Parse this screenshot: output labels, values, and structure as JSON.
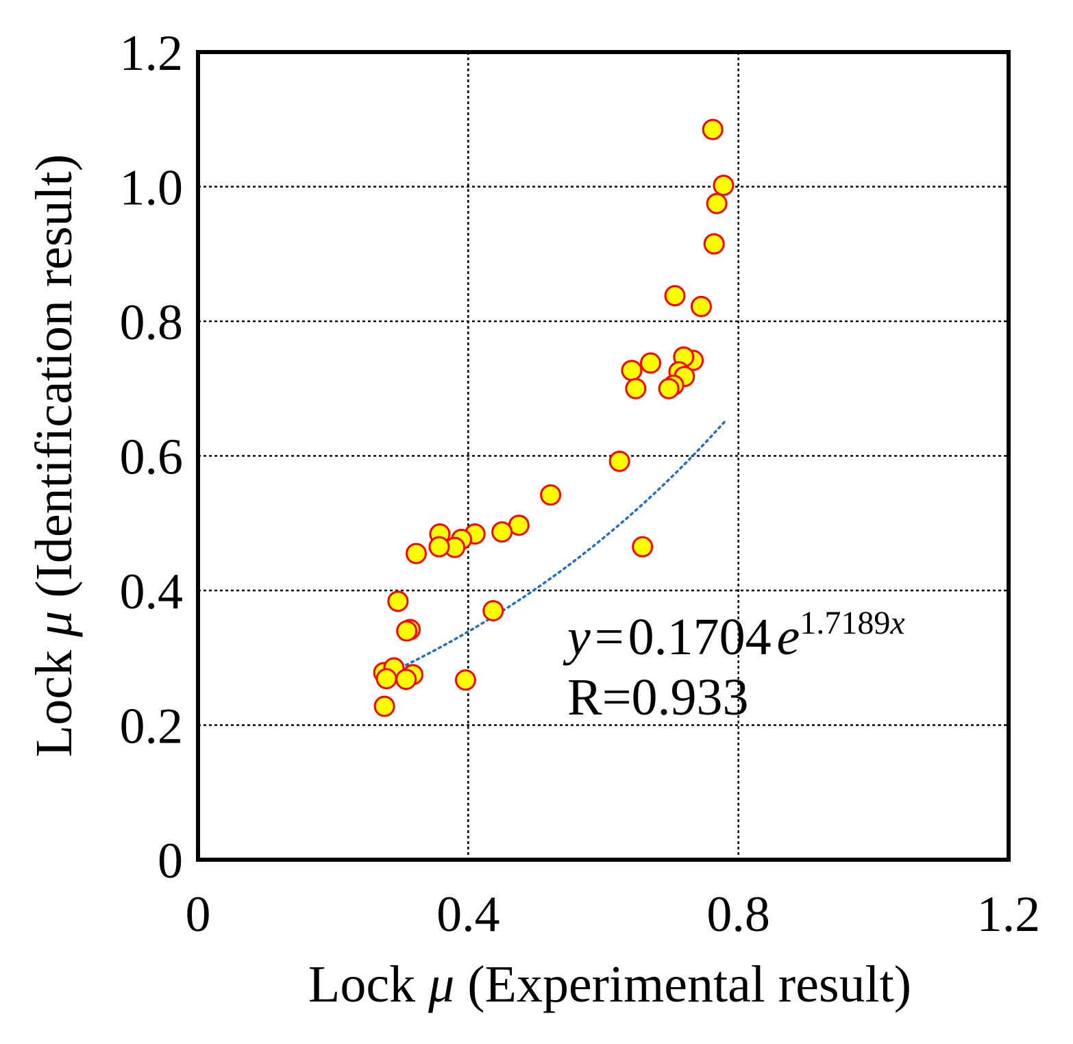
{
  "chart_data": {
    "type": "scatter",
    "title": "",
    "xlabel": {
      "prefix": "Lock ",
      "symbol": "μ",
      "suffix": " (Experimental result)"
    },
    "ylabel": {
      "prefix": "Lock ",
      "symbol": "μ",
      "suffix": " (Identification result)"
    },
    "xlim": [
      0,
      1.2
    ],
    "ylim": [
      0,
      1.2
    ],
    "grid": true,
    "x_ticks": [
      0,
      0.4,
      0.8,
      1.2
    ],
    "x_tick_labels": [
      "0",
      "0.4",
      "0.8",
      "1.2"
    ],
    "y_ticks": [
      0,
      0.2,
      0.4,
      0.6,
      0.8,
      1.0,
      1.2
    ],
    "y_tick_labels": [
      "0",
      "0.2",
      "0.4",
      "0.6",
      "0.8",
      "1.0",
      "1.2"
    ],
    "marker": {
      "fill": "#ffff00",
      "stroke": "#ff0000"
    },
    "trendline": {
      "type": "exponential",
      "a": 0.1704,
      "b": 1.7189,
      "x_range": [
        0.275,
        0.78
      ],
      "color": "#1f6fc4"
    },
    "annotation": {
      "eq_var": "y",
      "eq_eq": "=",
      "eq_coef": "0.1704",
      "eq_base": "e",
      "eq_exp_num": "1.7189",
      "eq_exp_var": "x",
      "r_text": "R=0.933"
    },
    "series": [
      {
        "name": "Lock μ",
        "points": [
          [
            0.762,
            1.085
          ],
          [
            0.778,
            1.002
          ],
          [
            0.768,
            0.975
          ],
          [
            0.764,
            0.915
          ],
          [
            0.706,
            0.838
          ],
          [
            0.745,
            0.822
          ],
          [
            0.733,
            0.742
          ],
          [
            0.719,
            0.747
          ],
          [
            0.67,
            0.738
          ],
          [
            0.642,
            0.727
          ],
          [
            0.712,
            0.725
          ],
          [
            0.72,
            0.718
          ],
          [
            0.704,
            0.705
          ],
          [
            0.697,
            0.7
          ],
          [
            0.648,
            0.7
          ],
          [
            0.624,
            0.592
          ],
          [
            0.522,
            0.542
          ],
          [
            0.475,
            0.497
          ],
          [
            0.45,
            0.487
          ],
          [
            0.41,
            0.484
          ],
          [
            0.358,
            0.484
          ],
          [
            0.39,
            0.476
          ],
          [
            0.38,
            0.464
          ],
          [
            0.357,
            0.465
          ],
          [
            0.323,
            0.455
          ],
          [
            0.658,
            0.465
          ],
          [
            0.296,
            0.384
          ],
          [
            0.437,
            0.37
          ],
          [
            0.314,
            0.342
          ],
          [
            0.309,
            0.34
          ],
          [
            0.275,
            0.278
          ],
          [
            0.29,
            0.285
          ],
          [
            0.318,
            0.275
          ],
          [
            0.279,
            0.269
          ],
          [
            0.308,
            0.268
          ],
          [
            0.396,
            0.267
          ],
          [
            0.276,
            0.228
          ]
        ]
      }
    ]
  }
}
